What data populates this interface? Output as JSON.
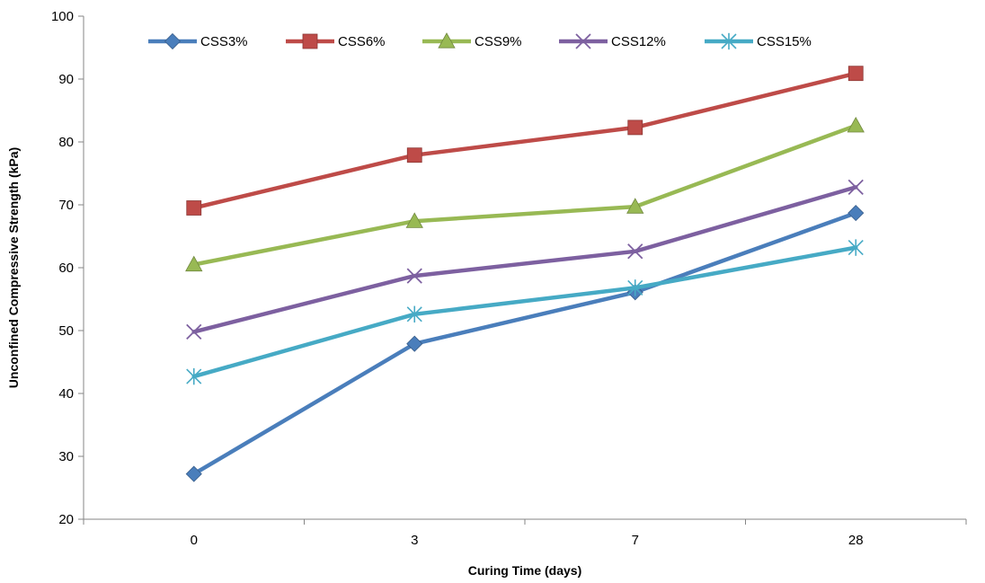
{
  "chart_data": {
    "type": "line",
    "title": "",
    "xlabel": "Curing Time (days)",
    "ylabel": "Unconfined Compressive Strength (kPa)",
    "categories": [
      "0",
      "3",
      "7",
      "28"
    ],
    "ylim": [
      20,
      100
    ],
    "yticks": [
      20,
      30,
      40,
      50,
      60,
      70,
      80,
      90,
      100
    ],
    "grid": false,
    "legend_position": "top",
    "series": [
      {
        "name": "CSS3%",
        "values": [
          27.2,
          47.9,
          56.1,
          68.7
        ],
        "color": "#4a7ebb",
        "marker": "diamond"
      },
      {
        "name": "CSS6%",
        "values": [
          69.5,
          77.9,
          82.3,
          90.9
        ],
        "color": "#be4b48",
        "marker": "square"
      },
      {
        "name": "CSS9%",
        "values": [
          60.5,
          67.4,
          69.7,
          82.6
        ],
        "color": "#98b954",
        "marker": "triangle"
      },
      {
        "name": "CSS12%",
        "values": [
          49.8,
          58.7,
          62.6,
          72.8
        ],
        "color": "#7d60a0",
        "marker": "x"
      },
      {
        "name": "CSS15%",
        "values": [
          42.7,
          52.6,
          56.8,
          63.2
        ],
        "color": "#46aac5",
        "marker": "star"
      }
    ]
  }
}
